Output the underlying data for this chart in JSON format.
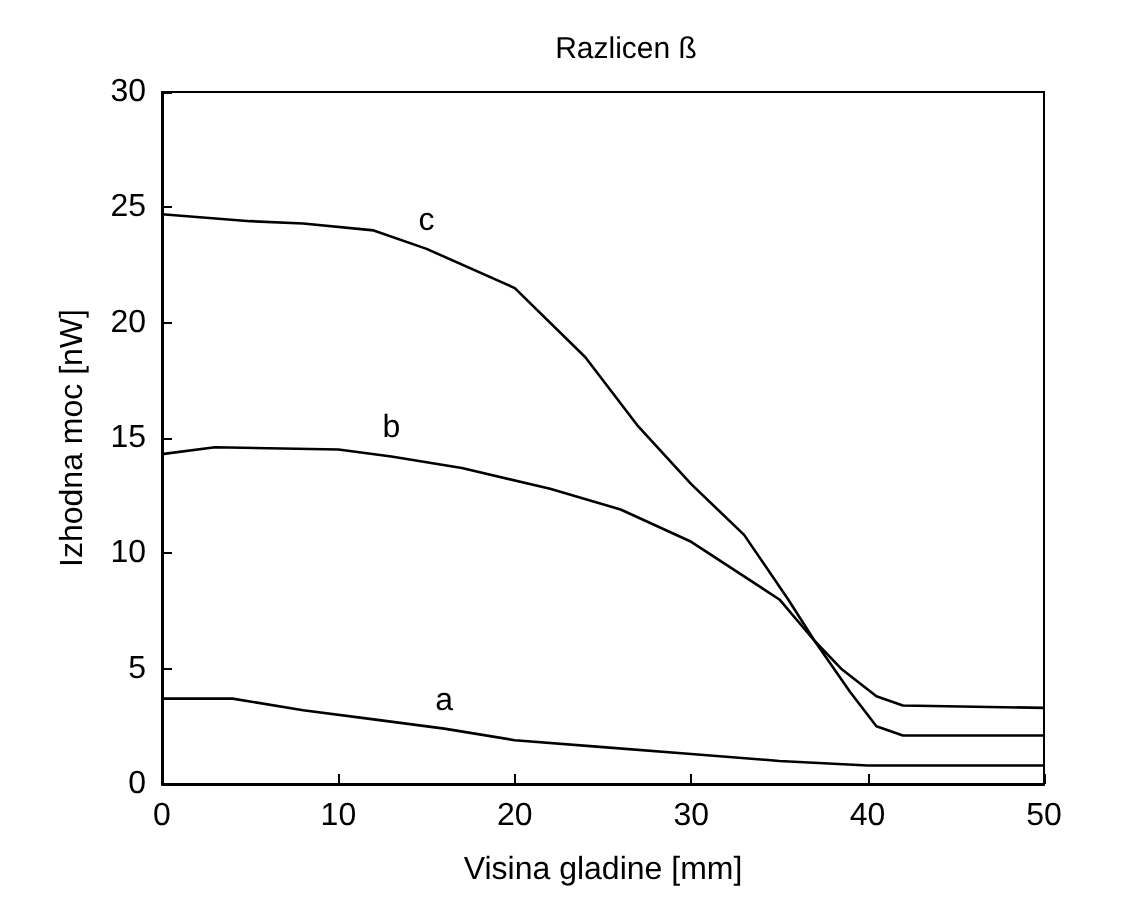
{
  "chart_data": {
    "type": "line",
    "title": "Razlicen ß",
    "xlabel": "Visina gladine [mm]",
    "ylabel": "Izhodna moc [nW]",
    "xlim": [
      0,
      50
    ],
    "xticks": [
      0,
      10,
      20,
      30,
      40,
      50
    ],
    "ylim": [
      0,
      30
    ],
    "yticks": [
      0,
      5,
      10,
      15,
      20,
      25,
      30
    ],
    "grid": false,
    "marker": "none",
    "line_style": "solid",
    "series": [
      {
        "name": "c",
        "color": "#000000",
        "x": [
          0,
          5,
          8,
          12,
          15,
          20,
          24,
          27,
          30,
          33,
          35.5,
          37,
          39,
          40.5,
          42,
          50
        ],
        "values": [
          24.7,
          24.4,
          24.3,
          24.0,
          23.2,
          21.5,
          18.5,
          15.5,
          13,
          10.8,
          8,
          6.2,
          4,
          2.5,
          2.1,
          2.1
        ]
      },
      {
        "name": "b",
        "color": "#000000",
        "x": [
          0,
          3,
          10,
          13,
          17,
          22,
          26,
          30,
          32,
          35,
          37,
          38.5,
          40.5,
          42,
          50
        ],
        "values": [
          14.3,
          14.6,
          14.5,
          14.2,
          13.7,
          12.8,
          11.9,
          10.5,
          9.5,
          8,
          6.2,
          5,
          3.8,
          3.4,
          3.3
        ]
      },
      {
        "name": "a",
        "color": "#000000",
        "x": [
          0,
          4,
          8,
          12,
          16,
          20,
          25,
          30,
          35,
          40,
          50
        ],
        "values": [
          3.7,
          3.7,
          3.2,
          2.8,
          2.4,
          1.9,
          1.6,
          1.3,
          1.0,
          0.8,
          0.8
        ]
      }
    ]
  }
}
